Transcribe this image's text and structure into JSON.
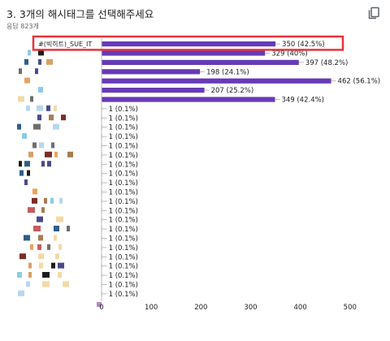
{
  "question": {
    "title": "3. 3개의 해시태그를 선택해주세요",
    "responses": "응답 823개"
  },
  "icons": {
    "copy": "copy-icon"
  },
  "colors": {
    "bar": "#673ab7",
    "highlight": "#e8333a",
    "axis": "#bdbdbd"
  },
  "chart_data": {
    "type": "bar",
    "orientation": "horizontal",
    "highlighted_category": "#(빅히트)_SUE_IT",
    "categories": [
      "#(빅히트)_SUE_IT",
      "",
      "",
      "",
      "",
      "",
      "",
      "",
      "",
      "",
      "",
      "",
      "",
      "",
      "",
      "",
      "",
      "",
      "",
      "",
      "",
      "",
      "",
      "",
      "",
      "",
      "",
      ""
    ],
    "values": [
      350,
      329,
      397,
      198,
      462,
      207,
      349,
      1,
      1,
      1,
      1,
      1,
      1,
      1,
      1,
      1,
      1,
      1,
      1,
      1,
      1,
      1,
      1,
      1,
      1,
      1,
      1,
      1
    ],
    "value_labels": [
      "350 (42.5%)",
      "329 (40%)",
      "397 (48.2%)",
      "198 (24.1%)",
      "462 (56.1%)",
      "207 (25.2%)",
      "349 (42.4%)",
      "1 (0.1%)",
      "1 (0.1%)",
      "1 (0.1%)",
      "1 (0.1%)",
      "1 (0.1%)",
      "1 (0.1%)",
      "1 (0.1%)",
      "1 (0.1%)",
      "1 (0.1%)",
      "1 (0.1%)",
      "1 (0.1%)",
      "1 (0.1%)",
      "1 (0.1%)",
      "1 (0.1%)",
      "1 (0.1%)",
      "1 (0.1%)",
      "1 (0.1%)",
      "1 (0.1%)",
      "1 (0.1%)",
      "1 (0.1%)",
      "1 (0.1%)"
    ],
    "xlim": [
      0,
      500
    ],
    "xticks": [
      0,
      100,
      200,
      300,
      400,
      500
    ],
    "grid": false,
    "legend": "none"
  }
}
